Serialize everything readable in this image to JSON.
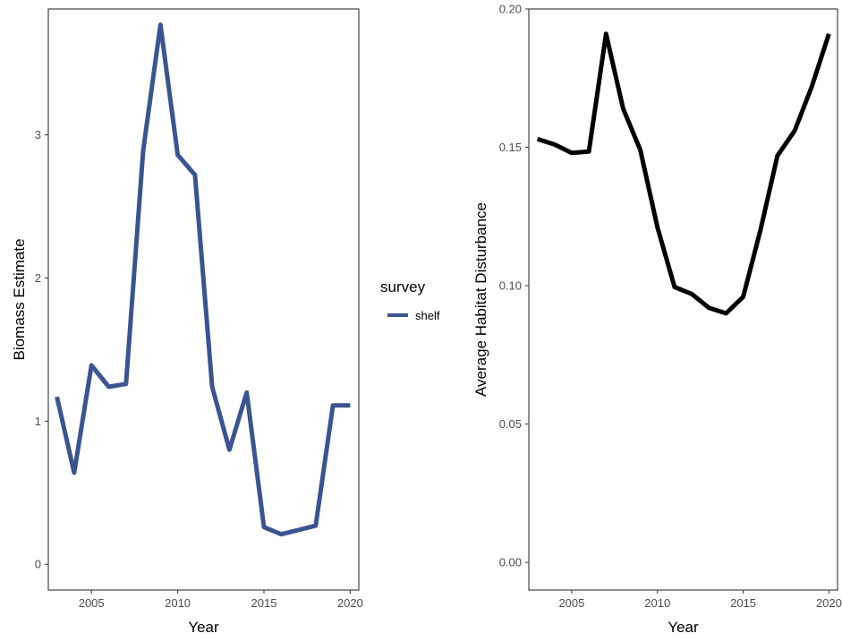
{
  "chart_data": [
    {
      "type": "line",
      "xlabel": "Year",
      "ylabel": "Biomass Estimate",
      "xlim": [
        2002.5,
        2020.5
      ],
      "ylim": [
        -0.18,
        3.88
      ],
      "x_ticks": [
        2005,
        2010,
        2015,
        2020
      ],
      "y_ticks": [
        0,
        1,
        2,
        3
      ],
      "legend": {
        "title": "survey",
        "position": "right"
      },
      "series": [
        {
          "name": "shelf",
          "color": "#3b5491",
          "x": [
            2003,
            2004,
            2005,
            2006,
            2007,
            2008,
            2009,
            2010,
            2011,
            2012,
            2013,
            2014,
            2015,
            2016,
            2017,
            2018,
            2019,
            2020
          ],
          "y": [
            1.17,
            0.64,
            1.39,
            1.24,
            1.26,
            2.89,
            3.77,
            2.86,
            2.72,
            1.24,
            0.8,
            1.2,
            0.26,
            0.21,
            0.24,
            0.27,
            1.11,
            1.11
          ]
        }
      ]
    },
    {
      "type": "line",
      "xlabel": "Year",
      "ylabel": "Average Habitat Disturbance",
      "xlim": [
        2002.5,
        2020.5
      ],
      "ylim": [
        -0.01,
        0.2
      ],
      "x_ticks": [
        2005,
        2010,
        2015,
        2020
      ],
      "y_ticks": [
        "0.00",
        "0.05",
        "0.10",
        "0.15",
        "0.20"
      ],
      "series": [
        {
          "color": "#000000",
          "x": [
            2003,
            2004,
            2005,
            2006,
            2007,
            2008,
            2009,
            2010,
            2011,
            2012,
            2013,
            2014,
            2015,
            2016,
            2017,
            2018,
            2019,
            2020
          ],
          "y": [
            0.153,
            0.151,
            0.148,
            0.1485,
            0.191,
            0.164,
            0.149,
            0.121,
            0.0995,
            0.097,
            0.092,
            0.09,
            0.096,
            0.12,
            0.147,
            0.156,
            0.172,
            0.191
          ]
        }
      ]
    }
  ]
}
